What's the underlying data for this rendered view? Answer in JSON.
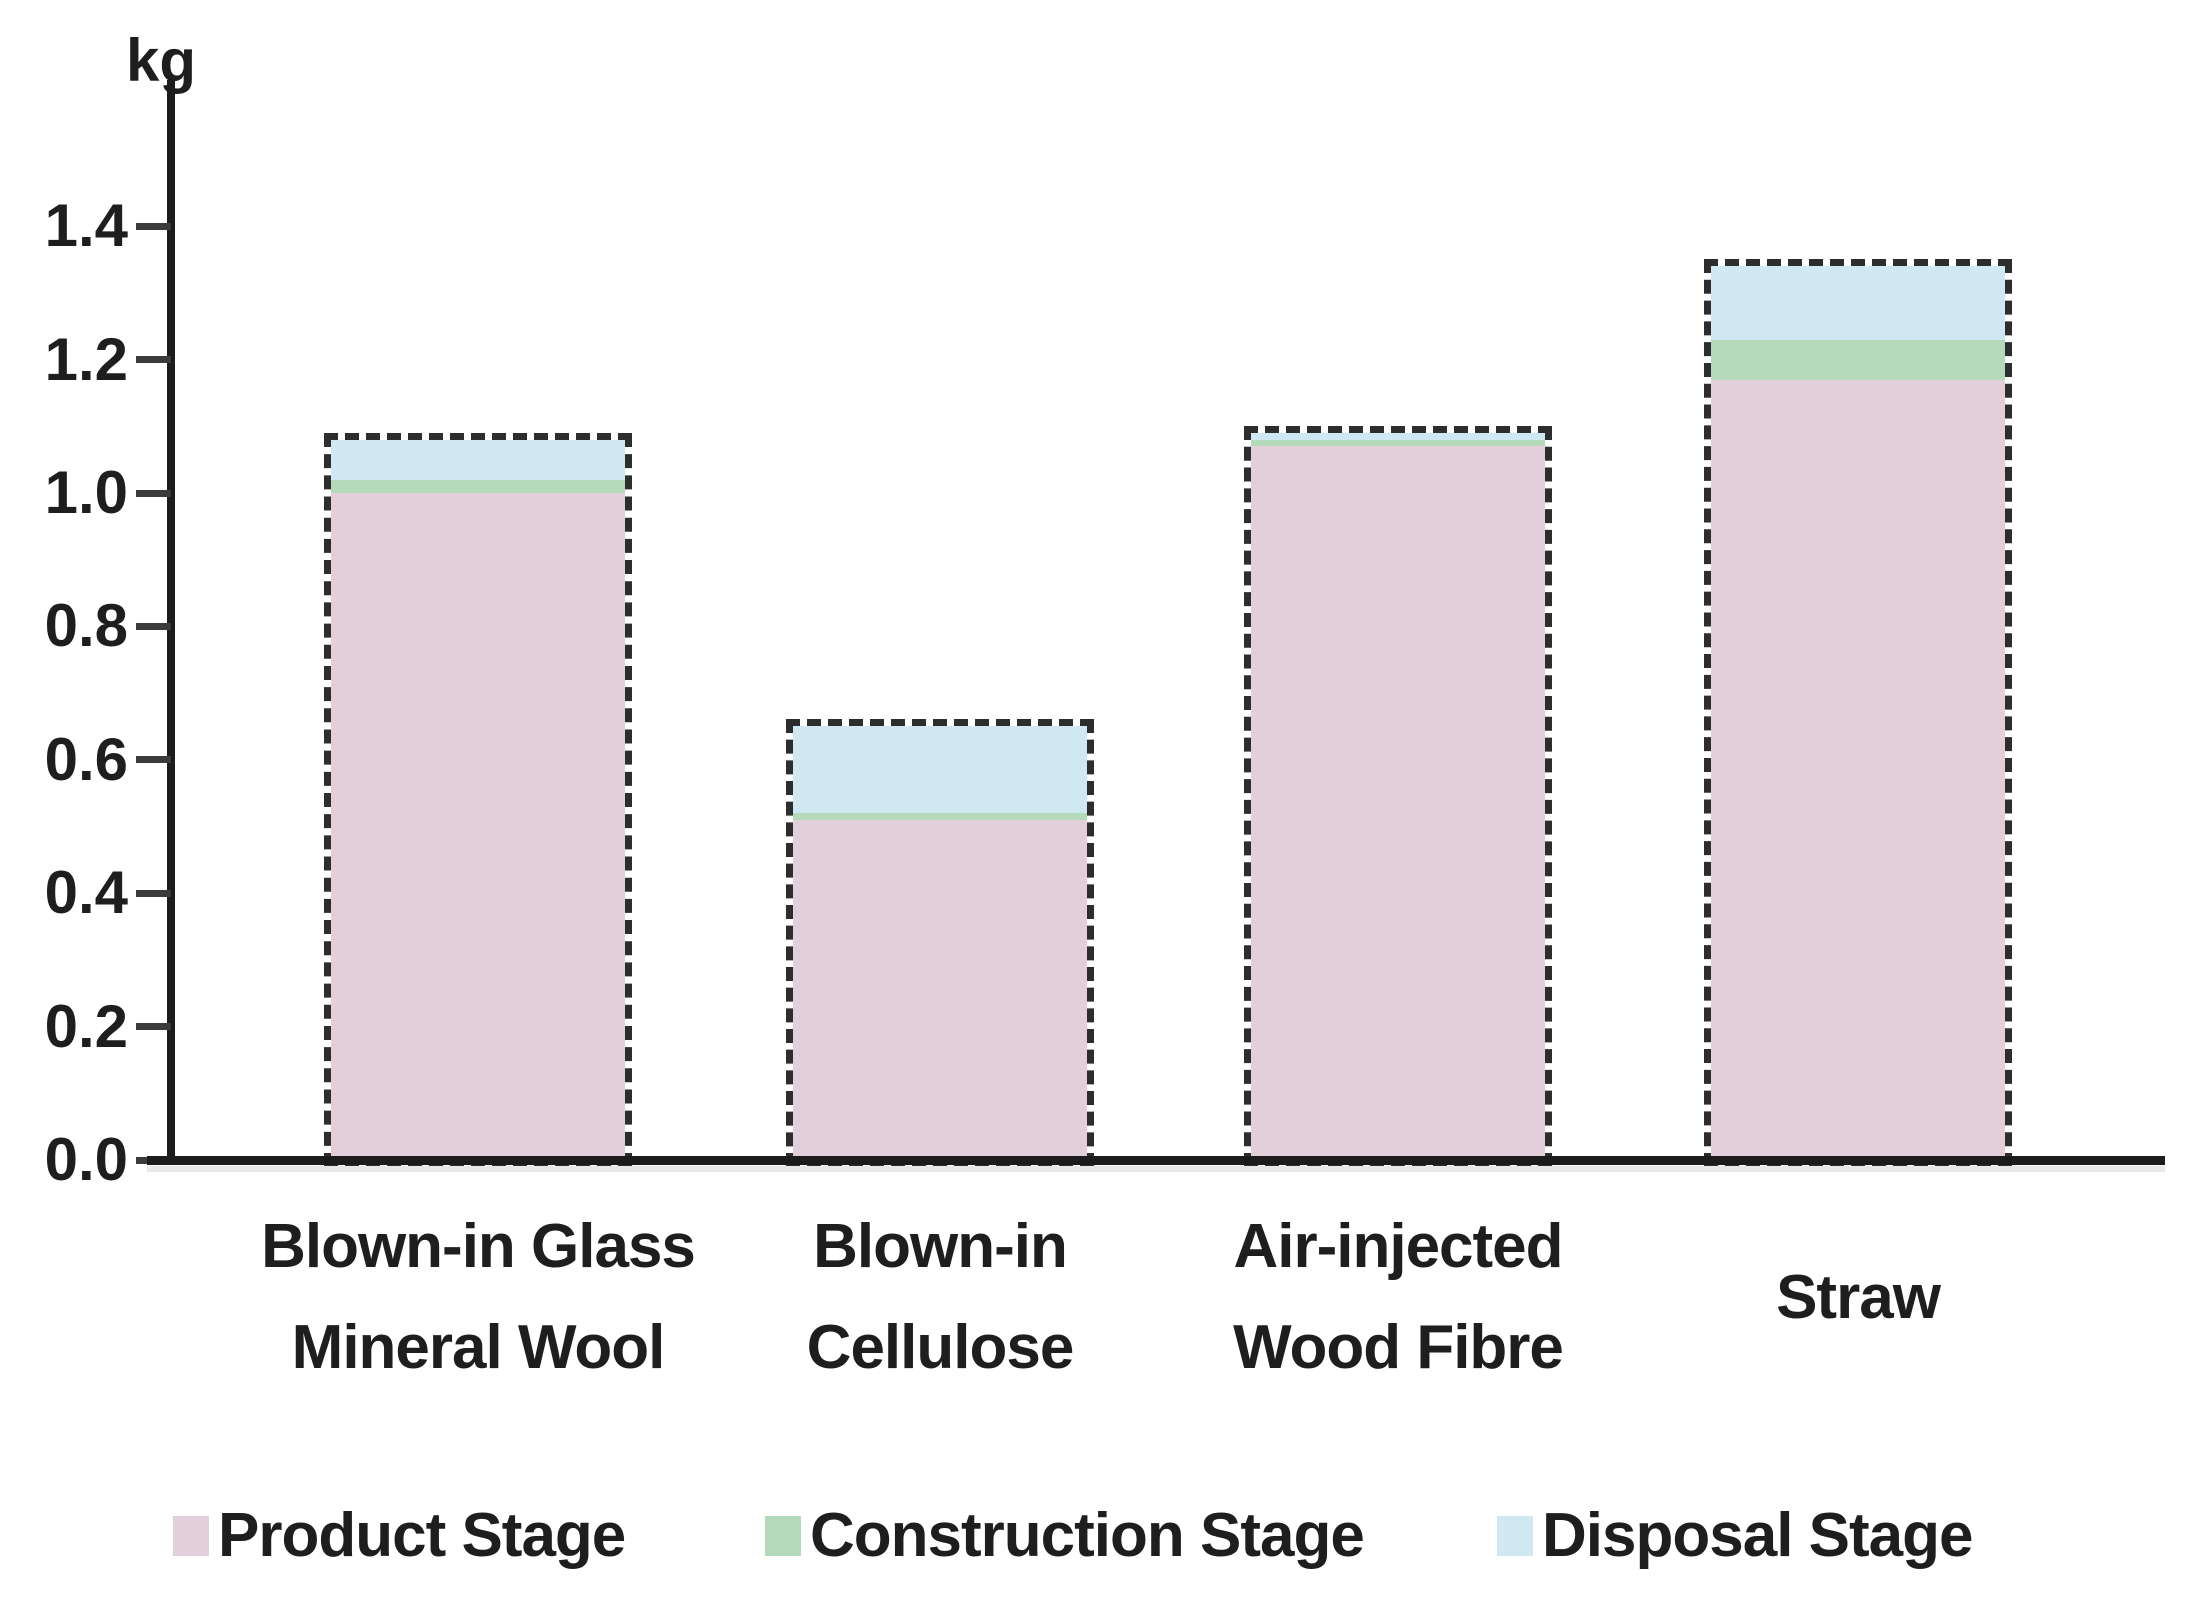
{
  "chart_data": {
    "type": "bar",
    "stacked": true,
    "unit_label": "kg",
    "ylabel": "kg",
    "xlabel": "",
    "ylim": [
      0,
      1.5
    ],
    "ytick_step": 0.2,
    "yticks": [
      "0.0",
      "0.2",
      "0.4",
      "0.6",
      "0.8",
      "1.0",
      "1.2",
      "1.4"
    ],
    "grid": false,
    "bar_outline": "dashed",
    "legend_position": "bottom",
    "categories": [
      "Blown-in Glass Mineral Wool",
      "Blown-in Cellulose",
      "Air-injected Wood Fibre",
      "Straw"
    ],
    "category_label_lines": [
      [
        "Blown-in Glass",
        "Mineral Wool"
      ],
      [
        "Blown-in",
        "Cellulose"
      ],
      [
        "Air-injected",
        "Wood Fibre"
      ],
      [
        "Straw"
      ]
    ],
    "series": [
      {
        "name": "Product Stage",
        "color": "#e2cfda",
        "values": [
          1.0,
          0.51,
          1.07,
          1.17
        ]
      },
      {
        "name": "Construction Stage",
        "color": "#b5dabb",
        "values": [
          0.02,
          0.01,
          0.01,
          0.06
        ]
      },
      {
        "name": "Disposal Stage",
        "color": "#cfe8f2",
        "values": [
          0.06,
          0.13,
          0.01,
          0.11
        ]
      }
    ],
    "totals": [
      1.08,
      0.65,
      1.09,
      1.34
    ]
  },
  "colors": {
    "axis": "#1c1c1c",
    "tick": "#3b3b3b",
    "bar_outline": "#2d2d2d",
    "text": "#1e1e1e"
  }
}
